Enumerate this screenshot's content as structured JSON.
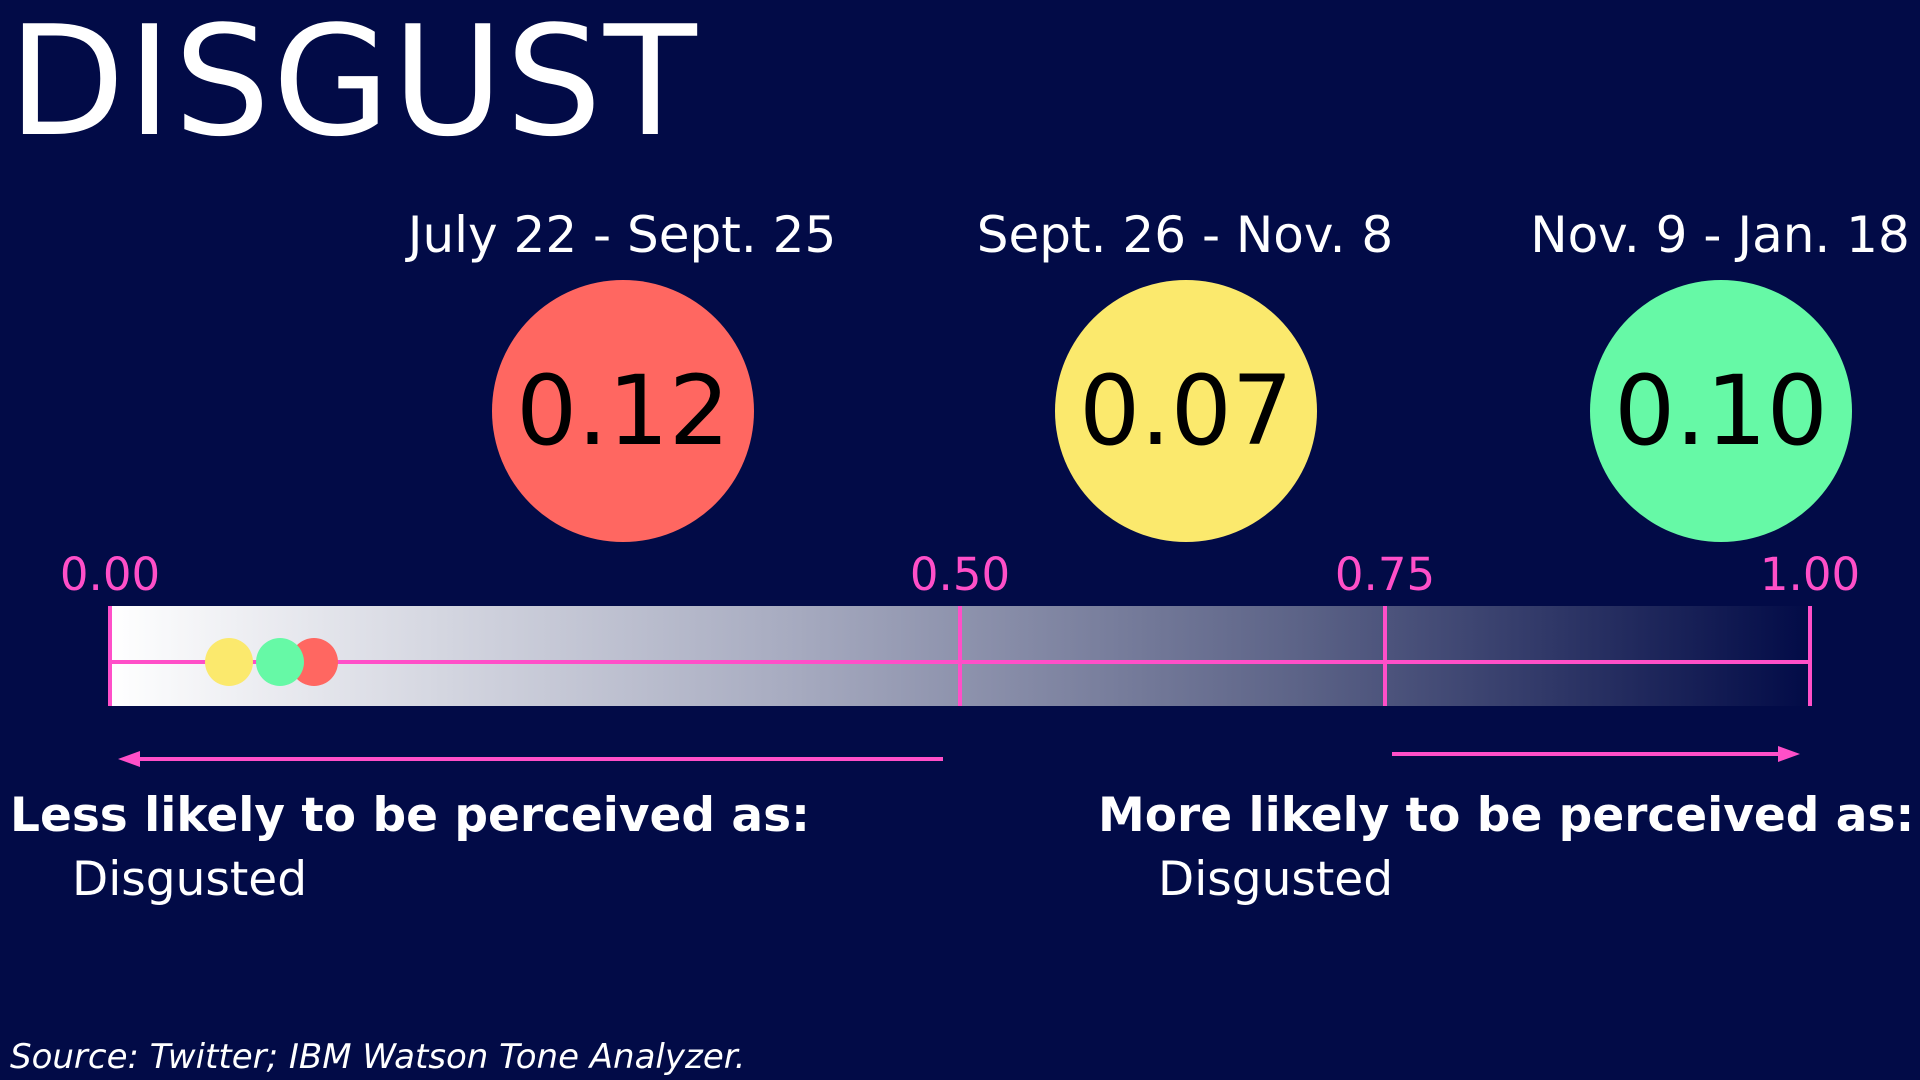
{
  "title": "DISGUST",
  "chart_data": {
    "type": "scatter",
    "title": "DISGUST",
    "periods": [
      {
        "label": "July 22 - Sept. 25",
        "value": 0.12,
        "color": "#ff6761"
      },
      {
        "label": "Sept. 26 - Nov. 8",
        "value": 0.07,
        "color": "#fbe96d"
      },
      {
        "label": "Nov. 9 - Jan. 18",
        "value": 0.1,
        "color": "#66f9a6"
      }
    ],
    "scale_ticks": [
      "0.00",
      "0.50",
      "0.75",
      "1.00"
    ],
    "xlim": [
      0,
      1
    ]
  },
  "left_note": {
    "heading": "Less likely to be perceived as:",
    "emotion": "Disgusted"
  },
  "right_note": {
    "heading": "More likely to be perceived as:",
    "emotion": "Disgusted"
  },
  "source": "Source: Twitter; IBM Watson Tone Analyzer.",
  "colors": {
    "background": "#020b47",
    "accent": "#ff4fc8"
  }
}
